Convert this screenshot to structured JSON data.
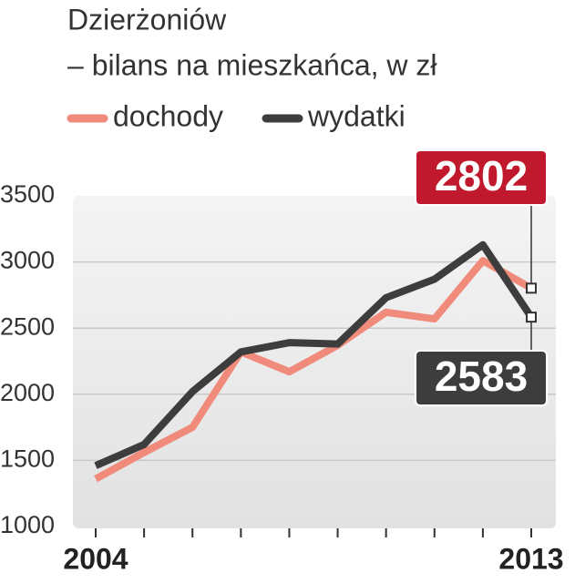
{
  "chart_data": {
    "type": "line",
    "title": "Dzierżoniów",
    "subtitle": "– bilans na mieszkańca, w zł",
    "categories": [
      "2004",
      null,
      null,
      null,
      null,
      null,
      null,
      null,
      null,
      "2013"
    ],
    "series": [
      {
        "name": "dochody",
        "color": "#f08a7a",
        "values": [
          1360,
          1560,
          1750,
          2320,
          2170,
          2370,
          2620,
          2570,
          3010,
          2802
        ],
        "callout_color": "#c0182c"
      },
      {
        "name": "wydatki",
        "color": "#3d3d3d",
        "values": [
          1460,
          1620,
          2020,
          2320,
          2390,
          2380,
          2730,
          2870,
          3130,
          2583
        ],
        "callout_color": "#3d3d3d"
      }
    ],
    "ylim": [
      1000,
      3500
    ],
    "yticks": [
      1000,
      1500,
      2000,
      2500,
      3000,
      3500
    ],
    "grid": true
  }
}
